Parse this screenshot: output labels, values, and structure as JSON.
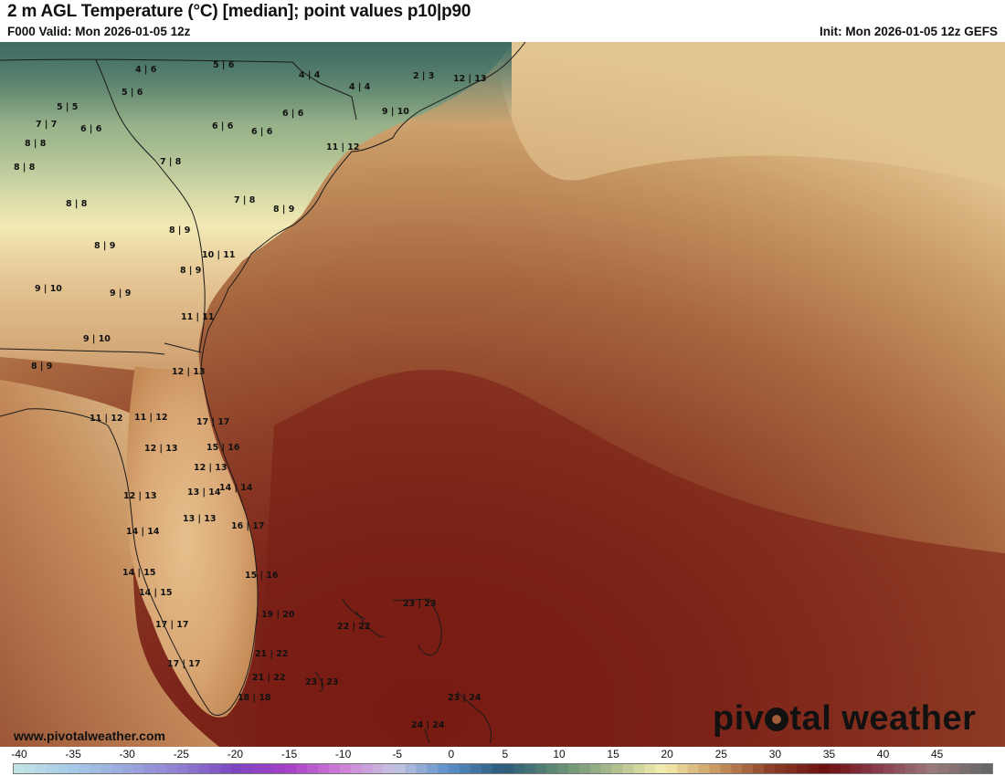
{
  "header": {
    "title": "2 m AGL Temperature (°C) [median]; point values p10|p90",
    "valid": "F000 Valid: Mon 2026-01-05 12z",
    "init": "Init: Mon 2026-01-05 12z GEFS"
  },
  "footer": {
    "website": "www.pivotalweather.com",
    "brand_left": "piv",
    "brand_right": "tal weather"
  },
  "scale": {
    "ticks": [
      "-40",
      "-35",
      "-30",
      "-25",
      "-20",
      "-15",
      "-10",
      "-5",
      "0",
      "5",
      "10",
      "15",
      "20",
      "25",
      "30",
      "35",
      "40",
      "45"
    ],
    "colors": [
      "#bfe3e4",
      "#a5c9e6",
      "#9aa8dd",
      "#8f7fd0",
      "#7b46c0",
      "#a63fc6",
      "#cf7fd6",
      "#c6c6e2",
      "#5a8fc8",
      "#2a5a7a",
      "#5f8a72",
      "#a9b98c",
      "#f5efb0",
      "#c6955e",
      "#8a3d28",
      "#6d0f0f",
      "#8a3d4e",
      "#9a7a7a",
      "#666666"
    ]
  },
  "points": [
    {
      "text": "4 | 6"
    },
    {
      "text": "5 | 6"
    },
    {
      "text": "4 | 4"
    },
    {
      "text": "2 | 3"
    },
    {
      "text": "12 | 13"
    },
    {
      "text": "5 | 6"
    },
    {
      "text": "4 | 4"
    },
    {
      "text": "5 | 5"
    },
    {
      "text": "9 | 10"
    },
    {
      "text": "7 | 7"
    },
    {
      "text": "6 | 6"
    },
    {
      "text": "6 | 6"
    },
    {
      "text": "6 | 6"
    },
    {
      "text": "6 | 6"
    },
    {
      "text": "8 | 8"
    },
    {
      "text": "11 | 12"
    },
    {
      "text": "8 | 8"
    },
    {
      "text": "7 | 8"
    },
    {
      "text": "8 | 8"
    },
    {
      "text": "7 | 8"
    },
    {
      "text": "8 | 9"
    },
    {
      "text": "8 | 9"
    },
    {
      "text": "8 | 9"
    },
    {
      "text": "10 | 11"
    },
    {
      "text": "8 | 9"
    },
    {
      "text": "9 | 10"
    },
    {
      "text": "9 | 9"
    },
    {
      "text": "11 | 11"
    },
    {
      "text": "9 | 10"
    },
    {
      "text": "8 | 9"
    },
    {
      "text": "12 | 13"
    },
    {
      "text": "11 | 12"
    },
    {
      "text": "11 | 12"
    },
    {
      "text": "17 | 17"
    },
    {
      "text": "15 | 16"
    },
    {
      "text": "12 | 13"
    },
    {
      "text": "12 | 13"
    },
    {
      "text": "14 | 14"
    },
    {
      "text": "13 | 14"
    },
    {
      "text": "12 | 13"
    },
    {
      "text": "16 | 17"
    },
    {
      "text": "14 | 14"
    },
    {
      "text": "13 | 13"
    },
    {
      "text": "14 | 15"
    },
    {
      "text": "15 | 16"
    },
    {
      "text": "14 | 15"
    },
    {
      "text": "23 | 23"
    },
    {
      "text": "19 | 20"
    },
    {
      "text": "22 | 22"
    },
    {
      "text": "17 | 17"
    },
    {
      "text": "21 | 22"
    },
    {
      "text": "17 | 17"
    },
    {
      "text": "21 | 22"
    },
    {
      "text": "23 | 23"
    },
    {
      "text": "18 | 18"
    },
    {
      "text": "23 | 24"
    },
    {
      "text": "24 | 24"
    }
  ]
}
